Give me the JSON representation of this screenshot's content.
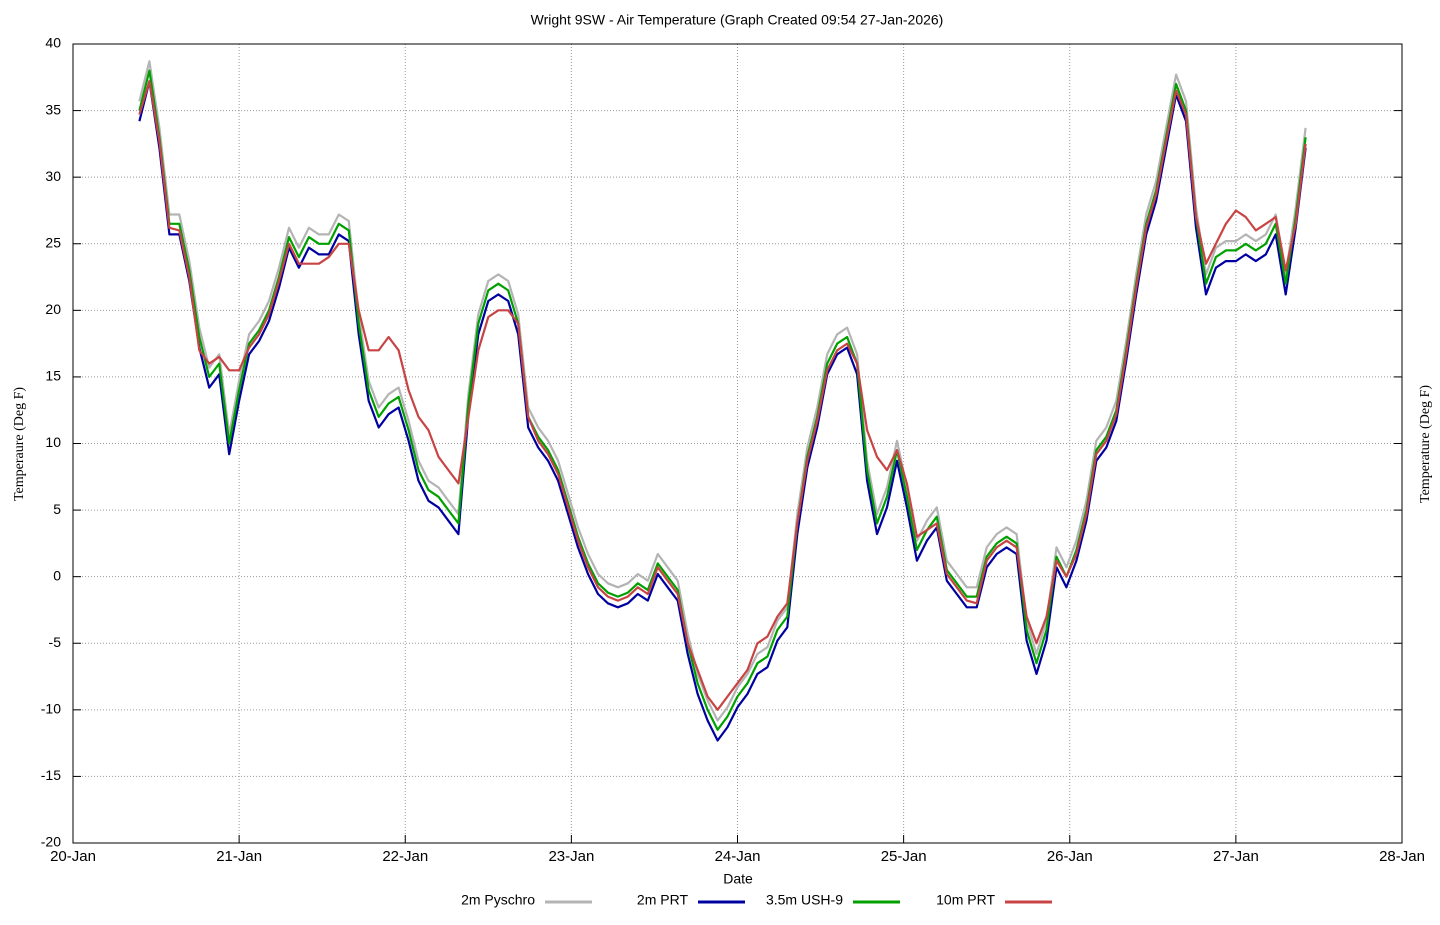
{
  "chart_data": {
    "type": "line",
    "title": "Wright 9SW - Air Temperature (Graph Created 09:54 27-Jan-2026)",
    "x_label": "Date",
    "y_label": "Temperaure (Deg F)",
    "y2_label": "Temperature (Deg F)",
    "xlim": [
      20,
      28
    ],
    "xticks": [
      {
        "value": 20,
        "label": "20-Jan"
      },
      {
        "value": 21,
        "label": "21-Jan"
      },
      {
        "value": 22,
        "label": "22-Jan"
      },
      {
        "value": 23,
        "label": "23-Jan"
      },
      {
        "value": 24,
        "label": "24-Jan"
      },
      {
        "value": 25,
        "label": "25-Jan"
      },
      {
        "value": 26,
        "label": "26-Jan"
      },
      {
        "value": 27,
        "label": "27-Jan"
      },
      {
        "value": 28,
        "label": "28-Jan"
      }
    ],
    "ylim": [
      -20,
      40
    ],
    "yticks": [
      -20,
      -15,
      -10,
      -5,
      0,
      5,
      10,
      15,
      20,
      25,
      30,
      35,
      40
    ],
    "grid": true,
    "x": [
      20.4,
      20.46,
      20.52,
      20.58,
      20.64,
      20.7,
      20.76,
      20.82,
      20.88,
      20.94,
      21,
      21.06,
      21.12,
      21.18,
      21.24,
      21.3,
      21.36,
      21.42,
      21.48,
      21.54,
      21.6,
      21.66,
      21.72,
      21.78,
      21.84,
      21.9,
      21.96,
      22.02,
      22.08,
      22.14,
      22.2,
      22.26,
      22.32,
      22.38,
      22.44,
      22.5,
      22.56,
      22.62,
      22.68,
      22.74,
      22.8,
      22.86,
      22.92,
      22.98,
      23.04,
      23.1,
      23.16,
      23.22,
      23.28,
      23.34,
      23.4,
      23.46,
      23.52,
      23.58,
      23.64,
      23.7,
      23.76,
      23.82,
      23.88,
      23.94,
      24,
      24.06,
      24.12,
      24.18,
      24.24,
      24.3,
      24.36,
      24.42,
      24.48,
      24.54,
      24.6,
      24.66,
      24.72,
      24.78,
      24.84,
      24.9,
      24.96,
      25.02,
      25.08,
      25.14,
      25.2,
      25.26,
      25.32,
      25.38,
      25.44,
      25.5,
      25.56,
      25.62,
      25.68,
      25.74,
      25.8,
      25.86,
      25.92,
      25.98,
      26.04,
      26.1,
      26.16,
      26.22,
      26.28,
      26.34,
      26.4,
      26.46,
      26.52,
      26.58,
      26.64,
      26.7,
      26.76,
      26.82,
      26.88,
      26.94,
      27,
      27.06,
      27.12,
      27.18,
      27.24,
      27.3,
      27.36,
      27.42
    ],
    "series": [
      {
        "name": "2m Pyschro",
        "color": "#b4b4b4",
        "values": [
          35.7,
          38.7,
          33.7,
          27.2,
          27.2,
          23.7,
          18.7,
          15.7,
          16.7,
          10.7,
          14.7,
          18.2,
          19.2,
          20.7,
          23.2,
          26.2,
          24.7,
          26.2,
          25.7,
          25.7,
          27.2,
          26.7,
          19.7,
          14.7,
          12.7,
          13.7,
          14.2,
          11.7,
          8.7,
          7.2,
          6.7,
          5.7,
          4.7,
          13.7,
          19.7,
          22.2,
          22.7,
          22.2,
          19.7,
          12.7,
          11.2,
          10.2,
          8.7,
          6.2,
          3.7,
          1.7,
          0.2,
          -0.5,
          -0.8,
          -0.5,
          0.2,
          -0.3,
          1.7,
          0.7,
          -0.3,
          -4.3,
          -7.3,
          -9.3,
          -10.8,
          -9.8,
          -8.3,
          -7.3,
          -5.8,
          -5.3,
          -3.3,
          -2.3,
          4.7,
          9.7,
          12.7,
          16.7,
          18.2,
          18.7,
          16.7,
          8.7,
          4.7,
          6.7,
          10.2,
          6.7,
          2.7,
          4.2,
          5.2,
          1.2,
          0.2,
          -0.8,
          -0.8,
          2.2,
          3.2,
          3.7,
          3.2,
          -3.3,
          -5.8,
          -3.3,
          2.2,
          0.7,
          2.7,
          5.7,
          10.2,
          11.2,
          13.2,
          17.7,
          22.7,
          27.2,
          29.7,
          33.7,
          37.7,
          35.7,
          27.7,
          22.7,
          24.7,
          25.2,
          25.2,
          25.7,
          25.2,
          25.7,
          27.2,
          22.7,
          27.7,
          33.7
        ]
      },
      {
        "name": "2m PRT",
        "color": "#0000a0",
        "values": [
          34.2,
          37.2,
          32.2,
          25.7,
          25.7,
          22.2,
          17.2,
          14.2,
          15.2,
          9.2,
          13.2,
          16.7,
          17.7,
          19.2,
          21.7,
          24.7,
          23.2,
          24.7,
          24.2,
          24.2,
          25.7,
          25.2,
          18.2,
          13.2,
          11.2,
          12.2,
          12.7,
          10.2,
          7.2,
          5.7,
          5.2,
          4.2,
          3.2,
          12.2,
          18.2,
          20.7,
          21.2,
          20.7,
          18.2,
          11.2,
          9.7,
          8.7,
          7.2,
          4.7,
          2.2,
          0.2,
          -1.3,
          -2,
          -2.3,
          -2,
          -1.3,
          -1.8,
          0.2,
          -0.8,
          -1.8,
          -5.8,
          -8.8,
          -10.8,
          -12.3,
          -11.3,
          -9.8,
          -8.8,
          -7.3,
          -6.8,
          -4.8,
          -3.8,
          3.2,
          8.2,
          11.2,
          15.2,
          16.7,
          17.2,
          15.2,
          7.2,
          3.2,
          5.2,
          8.7,
          5.2,
          1.2,
          2.7,
          3.7,
          -0.3,
          -1.3,
          -2.3,
          -2.3,
          0.7,
          1.7,
          2.2,
          1.7,
          -4.8,
          -7.3,
          -4.8,
          0.7,
          -0.8,
          1.2,
          4.2,
          8.7,
          9.7,
          11.7,
          16.2,
          21.2,
          25.7,
          28.2,
          32.2,
          36.2,
          34.2,
          26.2,
          21.2,
          23.2,
          23.7,
          23.7,
          24.2,
          23.7,
          24.2,
          25.7,
          21.2,
          26.2,
          32.2
        ]
      },
      {
        "name": "3.5m USH-9",
        "color": "#00a000",
        "values": [
          35,
          38,
          33,
          26.5,
          26.5,
          23,
          18,
          15,
          16,
          10,
          14,
          17.5,
          18.5,
          20,
          22.5,
          25.5,
          24,
          25.5,
          25,
          25,
          26.5,
          26,
          19,
          14,
          12,
          13,
          13.5,
          11,
          8,
          6.5,
          6,
          5,
          4,
          13,
          19,
          21.5,
          22,
          21.5,
          19,
          12,
          10.5,
          9.5,
          8,
          5.5,
          3,
          1,
          -0.5,
          -1.2,
          -1.5,
          -1.2,
          -0.5,
          -1,
          1,
          0,
          -1,
          -5,
          -8,
          -10,
          -11.5,
          -10.5,
          -9,
          -8,
          -6.5,
          -6,
          -4,
          -3,
          4,
          9,
          12,
          16,
          17.5,
          18,
          16,
          8,
          4,
          6,
          9.5,
          6,
          2,
          3.5,
          4.5,
          0.5,
          -0.5,
          -1.5,
          -1.5,
          1.5,
          2.5,
          3,
          2.5,
          -4,
          -6.5,
          -4,
          1.5,
          0,
          2,
          5,
          9.5,
          10.5,
          12.5,
          17,
          22,
          26.5,
          29,
          33,
          37,
          35,
          27,
          22,
          24,
          24.5,
          24.5,
          25,
          24.5,
          25,
          26.5,
          22,
          27,
          33
        ]
      },
      {
        "name": "10m PRT",
        "color": "#c84444",
        "values": [
          34.7,
          37.2,
          32.7,
          26.2,
          26,
          22.5,
          17,
          16,
          16.5,
          15.5,
          15.5,
          17.2,
          18.2,
          19.7,
          22.2,
          25,
          23.5,
          23.5,
          23.5,
          24,
          25,
          25,
          20,
          17,
          17,
          18,
          17,
          14,
          12,
          11,
          9,
          8,
          7,
          12,
          17,
          19.5,
          20,
          20,
          19,
          12,
          10.2,
          9.2,
          7.7,
          5.2,
          2.7,
          0.7,
          -0.8,
          -1.5,
          -1.8,
          -1.5,
          -0.8,
          -1.3,
          0.7,
          -0.3,
          -1.3,
          -5,
          -7,
          -9,
          -10,
          -9,
          -8,
          -7,
          -5,
          -4.5,
          -3,
          -2,
          4,
          8.7,
          11.7,
          15.5,
          17,
          17.5,
          16,
          11,
          9,
          8,
          9.5,
          7,
          3,
          3.5,
          4,
          0.2,
          -0.8,
          -1.8,
          -2,
          1.2,
          2.2,
          2.7,
          2.2,
          -3,
          -5,
          -3,
          1.2,
          0,
          1.7,
          4.7,
          9.2,
          10.2,
          12.2,
          16.7,
          21.7,
          26.2,
          28.7,
          32.7,
          36.5,
          34.7,
          27,
          23.5,
          25,
          26.5,
          27.5,
          27,
          26,
          26.5,
          27,
          23,
          26.5,
          32.5
        ]
      }
    ]
  }
}
